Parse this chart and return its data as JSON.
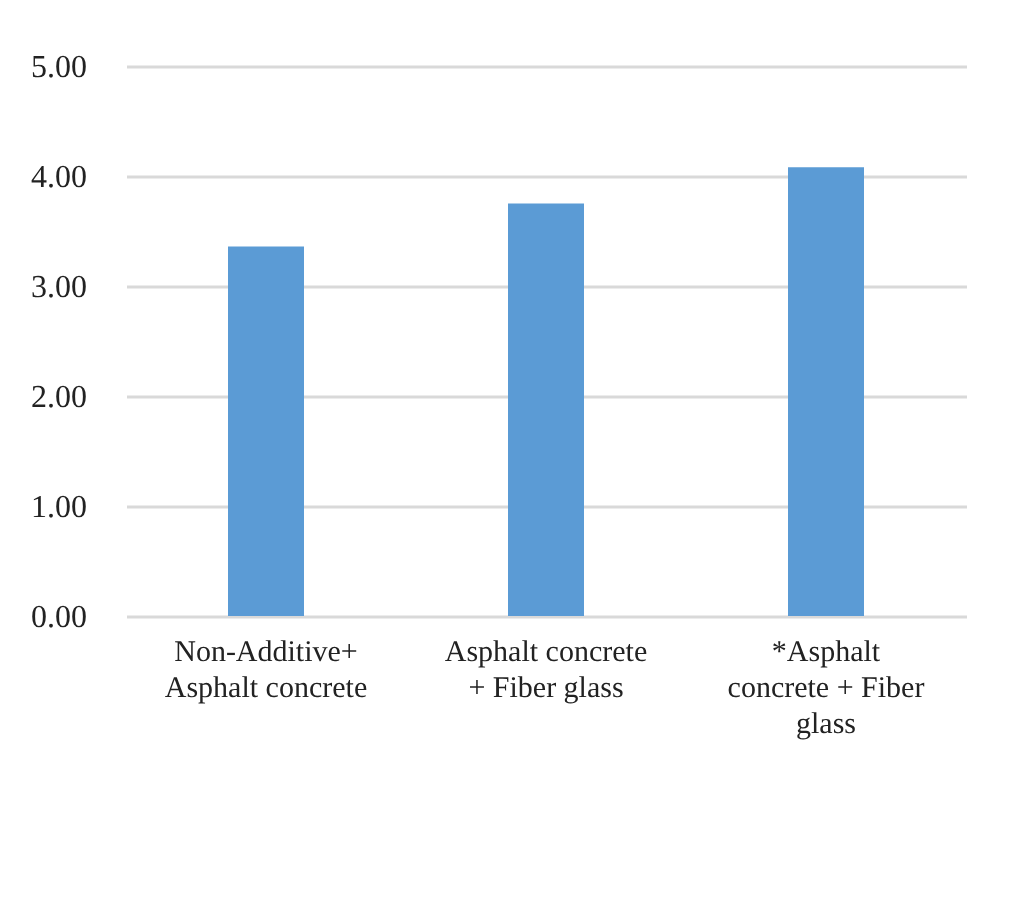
{
  "chart_data": {
    "type": "bar",
    "categories": [
      "Non-Additive+ Asphalt concrete",
      "Asphalt concrete + Fiber glass",
      "*Asphalt concrete + Fiber glass"
    ],
    "values": [
      3.36,
      3.75,
      4.08
    ],
    "color": "#5b9bd5",
    "ylim": [
      0,
      5
    ],
    "yticks": [
      {
        "value": 0,
        "label": "0.00"
      },
      {
        "value": 1,
        "label": "1.00"
      },
      {
        "value": 2,
        "label": "2.00"
      },
      {
        "value": 3,
        "label": "3.00"
      },
      {
        "value": 4,
        "label": "4.00"
      },
      {
        "value": 5,
        "label": "5.00"
      }
    ],
    "grid": "y"
  }
}
